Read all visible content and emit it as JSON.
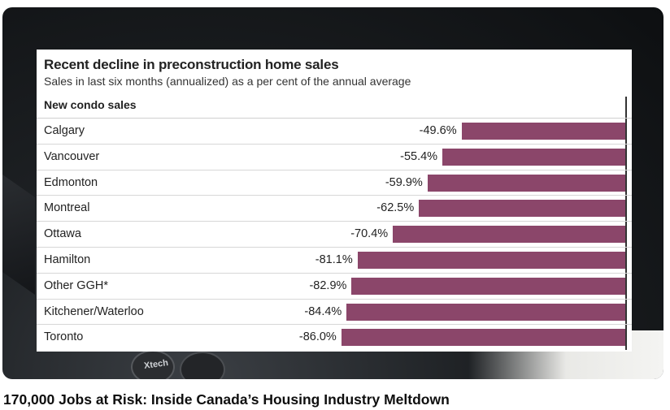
{
  "video": {
    "title": "170,000 Jobs at Risk: Inside Canada’s Housing Industry Meltdown",
    "mic_brand": "Xtech"
  },
  "chart_data": {
    "type": "bar",
    "orientation": "horizontal",
    "title": "Recent decline in preconstruction home sales",
    "subtitle": "Sales in last six months (annualized) as a per cent of the annual average",
    "series_label": "New condo sales",
    "bar_color": "#8b466a",
    "xlim": [
      -100,
      0
    ],
    "categories": [
      "Calgary",
      "Vancouver",
      "Edmonton",
      "Montreal",
      "Ottawa",
      "Hamilton",
      "Other GGH*",
      "Kitchener/Waterloo",
      "Toronto"
    ],
    "values": [
      -49.6,
      -55.4,
      -59.9,
      -62.5,
      -70.4,
      -81.1,
      -82.9,
      -84.4,
      -86.0
    ],
    "value_labels": [
      "-49.6%",
      "-55.4%",
      "-59.9%",
      "-62.5%",
      "-70.4%",
      "-81.1%",
      "-82.9%",
      "-84.4%",
      "-86.0%"
    ]
  }
}
